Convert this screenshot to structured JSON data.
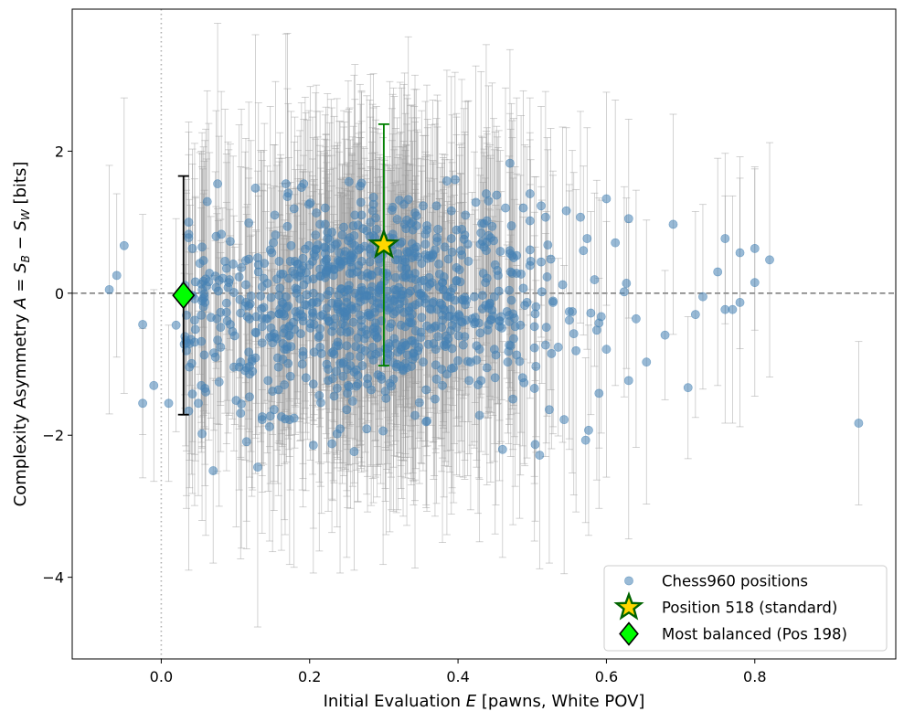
{
  "chart_data": {
    "type": "scatter",
    "xlabel": "Initial Evaluation E [pawns, White POV]",
    "ylabel": "Complexity Asymmetry A = S_B − S_W [bits]",
    "xlim": [
      -0.12,
      0.99
    ],
    "ylim": [
      -5.15,
      4.0
    ],
    "x_ticks": [
      0.0,
      0.2,
      0.4,
      0.6,
      0.8
    ],
    "x_tick_labels": [
      "0.0",
      "0.2",
      "0.4",
      "0.6",
      "0.8"
    ],
    "y_ticks": [
      -4,
      -2,
      0,
      2
    ],
    "y_tick_labels": [
      "−4",
      "−2",
      "0",
      "2"
    ],
    "reference_lines": [
      {
        "orientation": "horizontal",
        "value": 0,
        "style": "dashed",
        "color": "#808080"
      },
      {
        "orientation": "vertical",
        "value": 0,
        "style": "dotted",
        "color": "#b0b0b0"
      }
    ],
    "grid": false,
    "legend_position": "bottom-right",
    "series": [
      {
        "name": "Chess960 positions",
        "marker": "circle",
        "color": "#4682b4",
        "errorbar_color": "#999999",
        "point_count": 960,
        "x_mean": 0.28,
        "x_sd": 0.13,
        "y_mean": -0.15,
        "y_sd": 0.75,
        "err_min": 0.9,
        "err_max": 2.3,
        "points": [
          {
            "x": -0.07,
            "y": 0.05,
            "err": 1.75
          },
          {
            "x": -0.06,
            "y": 0.25,
            "err": 1.15
          },
          {
            "x": -0.05,
            "y": 0.67,
            "err": 2.08
          },
          {
            "x": -0.025,
            "y": -0.44,
            "err": 1.55
          },
          {
            "x": -0.025,
            "y": -1.55,
            "err": 1.05
          },
          {
            "x": -0.01,
            "y": -1.3,
            "err": 1.35
          },
          {
            "x": 0.01,
            "y": -1.55,
            "err": 1.1
          },
          {
            "x": 0.02,
            "y": -0.45,
            "err": 1.5
          },
          {
            "x": 0.05,
            "y": -1.55,
            "err": 1.3
          },
          {
            "x": 0.07,
            "y": -2.5,
            "err": 1.3
          },
          {
            "x": 0.13,
            "y": -2.45,
            "err": 2.25
          },
          {
            "x": 0.27,
            "y": 1.55,
            "err": 1.3
          },
          {
            "x": 0.47,
            "y": 1.83,
            "err": 1.6
          },
          {
            "x": 0.51,
            "y": -2.28,
            "err": 1.6
          },
          {
            "x": 0.6,
            "y": 1.33,
            "err": 1.5
          },
          {
            "x": 0.63,
            "y": 1.05,
            "err": 1.4
          },
          {
            "x": 0.69,
            "y": 0.97,
            "err": 1.55
          },
          {
            "x": 0.71,
            "y": -1.33,
            "err": 1.0
          },
          {
            "x": 0.72,
            "y": -0.3,
            "err": 1.45
          },
          {
            "x": 0.73,
            "y": -0.05,
            "err": 1.3
          },
          {
            "x": 0.75,
            "y": 0.3,
            "err": 1.6
          },
          {
            "x": 0.76,
            "y": 0.77,
            "err": 1.2
          },
          {
            "x": 0.76,
            "y": -0.23,
            "err": 1.6
          },
          {
            "x": 0.77,
            "y": -0.23,
            "err": 1.6
          },
          {
            "x": 0.78,
            "y": -0.13,
            "err": 1.75
          },
          {
            "x": 0.78,
            "y": 0.57,
            "err": 1.35
          },
          {
            "x": 0.8,
            "y": 0.15,
            "err": 1.6
          },
          {
            "x": 0.8,
            "y": 0.63,
            "err": 1.15
          },
          {
            "x": 0.82,
            "y": 0.47,
            "err": 1.65
          },
          {
            "x": 0.94,
            "y": -1.83,
            "err": 1.15
          }
        ]
      },
      {
        "name": "Position 518 (standard)",
        "marker": "star",
        "color": "#ffd700",
        "edge_color": "#006400",
        "errorbar_color": "#008000",
        "points": [
          {
            "x": 0.3,
            "y": 0.68,
            "err_low": 1.7,
            "err_high": 1.7
          }
        ]
      },
      {
        "name": "Most balanced (Pos 198)",
        "marker": "diamond",
        "color": "#00ff00",
        "edge_color": "#000000",
        "errorbar_color": "#000000",
        "points": [
          {
            "x": 0.03,
            "y": -0.03,
            "err_low": 1.68,
            "err_high": 1.68
          }
        ]
      }
    ]
  }
}
